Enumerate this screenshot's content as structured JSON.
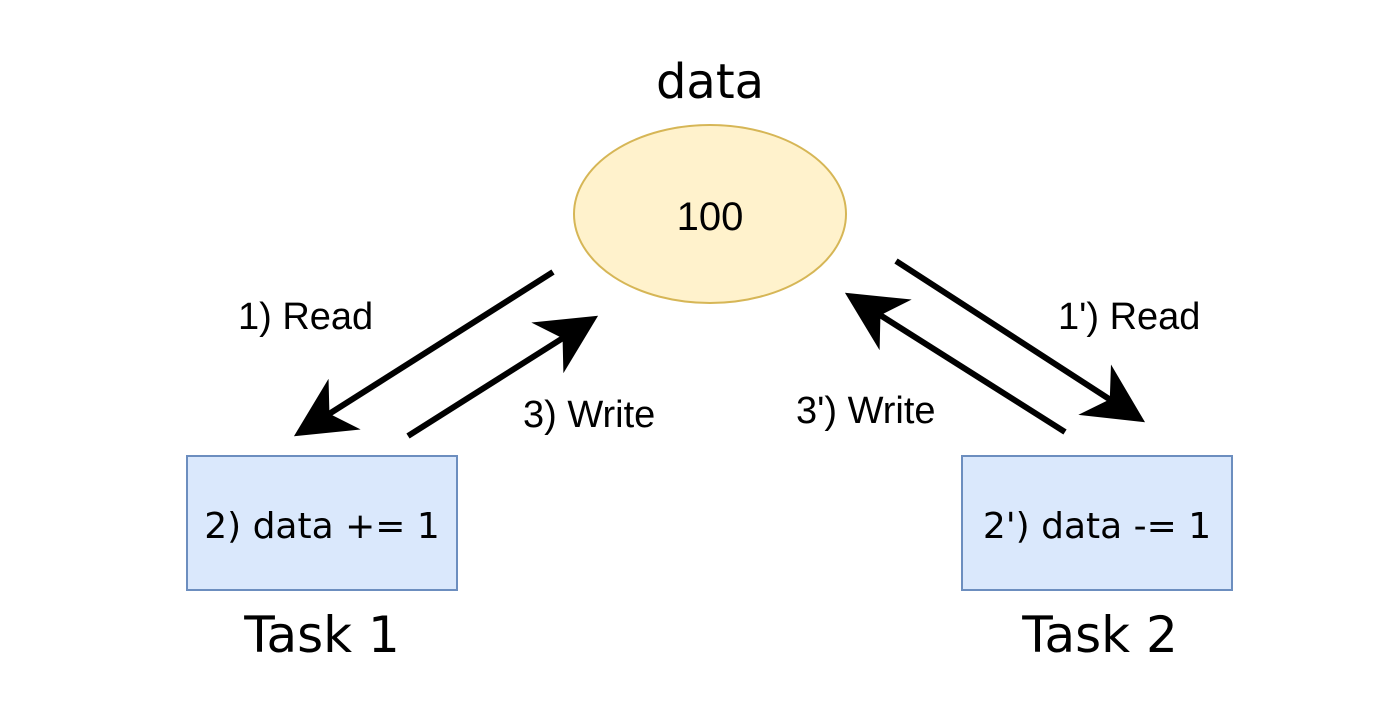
{
  "data_node": {
    "title": "data",
    "value": "100",
    "fill": "#fff2cc",
    "stroke": "#d6b656"
  },
  "task1": {
    "label": "Task 1",
    "operation": "2) data += 1",
    "fill": "#dae8fc",
    "stroke": "#6c8ebf"
  },
  "task2": {
    "label": "Task 2",
    "operation": "2') data -= 1",
    "fill": "#dae8fc",
    "stroke": "#6c8ebf"
  },
  "edges": {
    "task1_read": "1) Read",
    "task1_write": "3) Write",
    "task2_read": "1') Read",
    "task2_write": "3') Write"
  }
}
